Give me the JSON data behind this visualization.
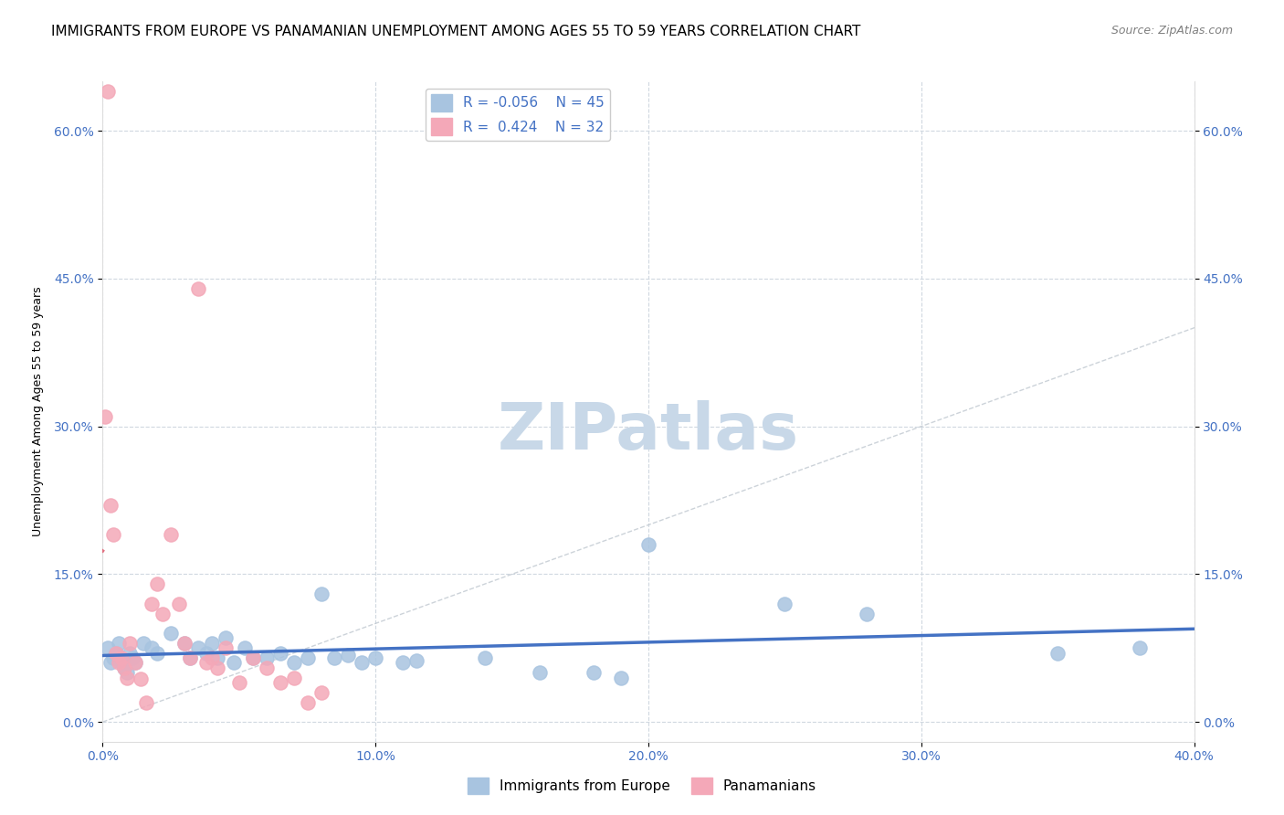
{
  "title": "IMMIGRANTS FROM EUROPE VS PANAMANIAN UNEMPLOYMENT AMONG AGES 55 TO 59 YEARS CORRELATION CHART",
  "source": "Source: ZipAtlas.com",
  "ylabel": "Unemployment Among Ages 55 to 59 years",
  "xlabel": "",
  "xlim": [
    0.0,
    0.4
  ],
  "ylim": [
    -0.02,
    0.65
  ],
  "xticks": [
    0.0,
    0.1,
    0.2,
    0.3,
    0.4
  ],
  "yticks_left": [
    0.0,
    0.15,
    0.3,
    0.45,
    0.6
  ],
  "ytick_labels_right": [
    "0.0%",
    "15.0%",
    "30.0%",
    "45.0%",
    "60.0%"
  ],
  "xtick_labels": [
    "0.0%",
    "10.0%",
    "20.0%",
    "30.0%",
    "40.0%"
  ],
  "legend_r1": "R = -0.056",
  "legend_n1": "N = 45",
  "legend_r2": "R =  0.424",
  "legend_n2": "N = 32",
  "blue_color": "#a8c4e0",
  "pink_color": "#f4a8b8",
  "blue_line_color": "#4472c4",
  "pink_line_color": "#e07080",
  "blue_scatter": [
    [
      0.002,
      0.075
    ],
    [
      0.003,
      0.06
    ],
    [
      0.004,
      0.065
    ],
    [
      0.005,
      0.07
    ],
    [
      0.006,
      0.08
    ],
    [
      0.007,
      0.06
    ],
    [
      0.008,
      0.055
    ],
    [
      0.009,
      0.05
    ],
    [
      0.01,
      0.07
    ],
    [
      0.011,
      0.065
    ],
    [
      0.012,
      0.06
    ],
    [
      0.015,
      0.08
    ],
    [
      0.018,
      0.075
    ],
    [
      0.02,
      0.07
    ],
    [
      0.025,
      0.09
    ],
    [
      0.03,
      0.08
    ],
    [
      0.032,
      0.065
    ],
    [
      0.035,
      0.075
    ],
    [
      0.038,
      0.07
    ],
    [
      0.04,
      0.08
    ],
    [
      0.042,
      0.065
    ],
    [
      0.045,
      0.085
    ],
    [
      0.048,
      0.06
    ],
    [
      0.052,
      0.075
    ],
    [
      0.055,
      0.065
    ],
    [
      0.06,
      0.065
    ],
    [
      0.065,
      0.07
    ],
    [
      0.07,
      0.06
    ],
    [
      0.075,
      0.065
    ],
    [
      0.08,
      0.13
    ],
    [
      0.085,
      0.065
    ],
    [
      0.09,
      0.068
    ],
    [
      0.095,
      0.06
    ],
    [
      0.1,
      0.065
    ],
    [
      0.11,
      0.06
    ],
    [
      0.115,
      0.062
    ],
    [
      0.14,
      0.065
    ],
    [
      0.16,
      0.05
    ],
    [
      0.18,
      0.05
    ],
    [
      0.19,
      0.045
    ],
    [
      0.2,
      0.18
    ],
    [
      0.25,
      0.12
    ],
    [
      0.28,
      0.11
    ],
    [
      0.35,
      0.07
    ],
    [
      0.38,
      0.075
    ]
  ],
  "pink_scatter": [
    [
      0.001,
      0.31
    ],
    [
      0.002,
      0.64
    ],
    [
      0.003,
      0.22
    ],
    [
      0.004,
      0.19
    ],
    [
      0.005,
      0.07
    ],
    [
      0.006,
      0.06
    ],
    [
      0.007,
      0.065
    ],
    [
      0.008,
      0.055
    ],
    [
      0.009,
      0.045
    ],
    [
      0.01,
      0.08
    ],
    [
      0.012,
      0.06
    ],
    [
      0.014,
      0.044
    ],
    [
      0.016,
      0.02
    ],
    [
      0.018,
      0.12
    ],
    [
      0.02,
      0.14
    ],
    [
      0.022,
      0.11
    ],
    [
      0.025,
      0.19
    ],
    [
      0.028,
      0.12
    ],
    [
      0.03,
      0.08
    ],
    [
      0.032,
      0.065
    ],
    [
      0.035,
      0.44
    ],
    [
      0.038,
      0.06
    ],
    [
      0.04,
      0.065
    ],
    [
      0.042,
      0.055
    ],
    [
      0.045,
      0.075
    ],
    [
      0.05,
      0.04
    ],
    [
      0.055,
      0.065
    ],
    [
      0.06,
      0.055
    ],
    [
      0.065,
      0.04
    ],
    [
      0.07,
      0.045
    ],
    [
      0.075,
      0.02
    ],
    [
      0.08,
      0.03
    ]
  ],
  "watermark": "ZIPatlas",
  "watermark_color": "#c8d8e8",
  "background_color": "#ffffff",
  "grid_color": "#d0d8e0",
  "title_fontsize": 11,
  "axis_fontsize": 10,
  "tick_fontsize": 10
}
